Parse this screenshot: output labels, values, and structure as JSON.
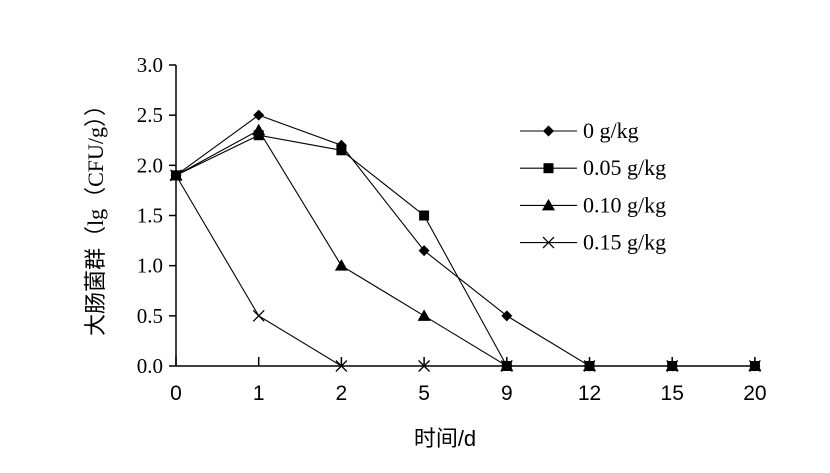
{
  "chart_data": {
    "type": "line",
    "x": [
      "0",
      "1",
      "2",
      "5",
      "9",
      "12",
      "15",
      "20"
    ],
    "xlabel": "时间/d",
    "ylabel": "大肠菌群（lg（CFU/g））",
    "ylim": [
      0,
      3.0
    ],
    "yticks": [
      "0.0",
      "0.5",
      "1.0",
      "1.5",
      "2.0",
      "2.5",
      "3.0"
    ],
    "grid": false,
    "legend": "top-right",
    "color": "#000000",
    "series": [
      {
        "name": "0 g/kg",
        "marker": "diamond",
        "values": [
          1.9,
          2.5,
          2.2,
          1.15,
          0.5,
          0,
          0,
          0
        ]
      },
      {
        "name": "0.05 g/kg",
        "marker": "square",
        "values": [
          1.9,
          2.3,
          2.15,
          1.5,
          0,
          0,
          0,
          0
        ]
      },
      {
        "name": "0.10 g/kg",
        "marker": "triangle",
        "values": [
          1.9,
          2.35,
          1.0,
          0.5,
          0,
          0,
          0,
          0
        ]
      },
      {
        "name": "0.15 g/kg",
        "marker": "cross",
        "values": [
          1.9,
          0.5,
          0,
          0,
          0,
          0,
          0,
          0
        ]
      }
    ]
  }
}
